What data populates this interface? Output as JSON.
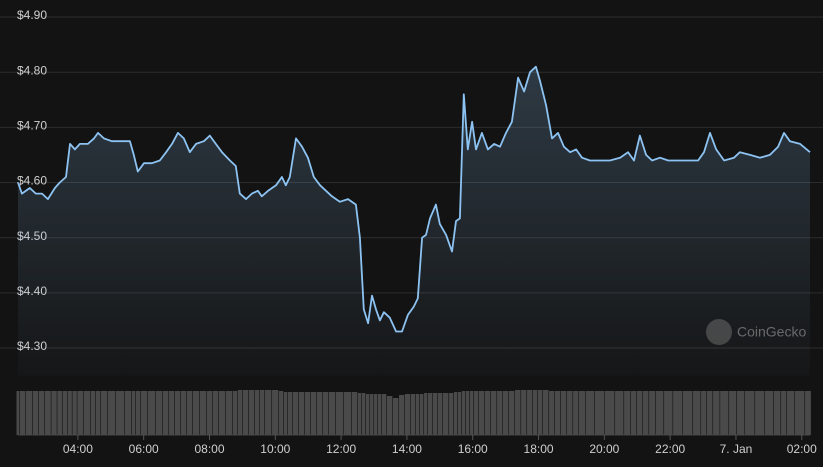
{
  "chart_data": {
    "type": "line",
    "watermark": "CoinGecko",
    "x": [
      2.18,
      2.3,
      2.54,
      2.72,
      2.91,
      3.09,
      3.3,
      3.45,
      3.64,
      3.76,
      3.91,
      4.06,
      4.3,
      4.49,
      4.61,
      4.79,
      5.03,
      5.28,
      5.58,
      5.7,
      5.82,
      6.01,
      6.25,
      6.49,
      6.68,
      6.86,
      7.04,
      7.22,
      7.4,
      7.59,
      7.83,
      8.01,
      8.19,
      8.38,
      8.62,
      8.8,
      8.92,
      9.11,
      9.29,
      9.47,
      9.59,
      9.78,
      10.02,
      10.2,
      10.32,
      10.44,
      10.63,
      10.81,
      10.99,
      11.17,
      11.36,
      11.54,
      11.72,
      11.96,
      12.21,
      12.45,
      12.57,
      12.69,
      12.82,
      12.94,
      13.06,
      13.18,
      13.3,
      13.48,
      13.67,
      13.85,
      14.03,
      14.21,
      14.33,
      14.46,
      14.58,
      14.7,
      14.88,
      15.0,
      15.19,
      15.37,
      15.49,
      15.61,
      15.73,
      15.85,
      15.98,
      16.1,
      16.28,
      16.46,
      16.65,
      16.83,
      17.01,
      17.19,
      17.38,
      17.56,
      17.74,
      17.92,
      18.04,
      18.23,
      18.41,
      18.59,
      18.77,
      18.96,
      19.14,
      19.32,
      19.56,
      19.87,
      20.17,
      20.48,
      20.72,
      20.9,
      21.08,
      21.27,
      21.45,
      21.69,
      21.94,
      22.24,
      22.54,
      22.85,
      23.03,
      23.21,
      23.4,
      23.64,
      23.94,
      24.12,
      24.43,
      24.73,
      25.03,
      25.28,
      25.46,
      25.64,
      25.95,
      26.25
    ],
    "series": [
      {
        "color": "#8dc3f2",
        "values": [
          4.6,
          4.58,
          4.59,
          4.58,
          4.58,
          4.57,
          4.59,
          4.6,
          4.61,
          4.67,
          4.66,
          4.67,
          4.67,
          4.68,
          4.69,
          4.68,
          4.675,
          4.675,
          4.675,
          4.65,
          4.62,
          4.635,
          4.635,
          4.64,
          4.655,
          4.67,
          4.69,
          4.68,
          4.655,
          4.67,
          4.675,
          4.685,
          4.67,
          4.655,
          4.64,
          4.63,
          4.58,
          4.57,
          4.58,
          4.585,
          4.575,
          4.585,
          4.595,
          4.61,
          4.595,
          4.61,
          4.68,
          4.665,
          4.645,
          4.61,
          4.595,
          4.585,
          4.575,
          4.565,
          4.57,
          4.56,
          4.5,
          4.37,
          4.345,
          4.395,
          4.37,
          4.35,
          4.365,
          4.355,
          4.33,
          4.33,
          4.36,
          4.375,
          4.39,
          4.5,
          4.505,
          4.535,
          4.56,
          4.525,
          4.505,
          4.475,
          4.53,
          4.535,
          4.76,
          4.66,
          4.71,
          4.66,
          4.69,
          4.66,
          4.67,
          4.665,
          4.69,
          4.71,
          4.79,
          4.765,
          4.8,
          4.81,
          4.785,
          4.74,
          4.68,
          4.69,
          4.665,
          4.655,
          4.66,
          4.645,
          4.64,
          4.64,
          4.64,
          4.645,
          4.655,
          4.64,
          4.685,
          4.65,
          4.64,
          4.645,
          4.64,
          4.64,
          4.64,
          4.64,
          4.655,
          4.69,
          4.66,
          4.64,
          4.645,
          4.655,
          4.65,
          4.645,
          4.65,
          4.665,
          4.69,
          4.675,
          4.67,
          4.655
        ]
      },
      {
        "color": "#4a4a4a",
        "axis": "y2",
        "type": "bar",
        "values": [
          88,
          88,
          88,
          88,
          88,
          88,
          88,
          88,
          88,
          88,
          88,
          88,
          88,
          88,
          88,
          88,
          88,
          88,
          88,
          88,
          88,
          88,
          88,
          88,
          88,
          88,
          88,
          88,
          88,
          88,
          88,
          88,
          88,
          88,
          88,
          88,
          90,
          90,
          90,
          90,
          90,
          90,
          90,
          88,
          86,
          86,
          86,
          86,
          86,
          86,
          86,
          86,
          86,
          86,
          86,
          86,
          84,
          84,
          82,
          82,
          82,
          82,
          82,
          78,
          74,
          80,
          82,
          82,
          82,
          82,
          84,
          84,
          84,
          84,
          84,
          84,
          86,
          86,
          88,
          88,
          88,
          88,
          88,
          88,
          88,
          88,
          88,
          88,
          90,
          90,
          90,
          90,
          90,
          90,
          88,
          88,
          88,
          88,
          88,
          88,
          88,
          88,
          88,
          88,
          88,
          88,
          88,
          88,
          88,
          88,
          88,
          88,
          88,
          88,
          88,
          88,
          88,
          88,
          88,
          88,
          88,
          88,
          88,
          88,
          88,
          88,
          88,
          88
        ]
      }
    ],
    "xlim": [
      2.18,
      26.25
    ],
    "xticks": [
      {
        "value": 4,
        "label": "04:00"
      },
      {
        "value": 6,
        "label": "06:00"
      },
      {
        "value": 8,
        "label": "08:00"
      },
      {
        "value": 10,
        "label": "10:00"
      },
      {
        "value": 12,
        "label": "12:00"
      },
      {
        "value": 14,
        "label": "14:00"
      },
      {
        "value": 16,
        "label": "16:00"
      },
      {
        "value": 18,
        "label": "18:00"
      },
      {
        "value": 20,
        "label": "20:00"
      },
      {
        "value": 22,
        "label": "22:00"
      },
      {
        "value": 24,
        "label": "7. Jan"
      },
      {
        "value": 26,
        "label": "02:00"
      }
    ],
    "ylim": [
      4.25,
      4.92
    ],
    "yticks": [
      {
        "value": 4.3,
        "label": "$4.30"
      },
      {
        "value": 4.4,
        "label": "$4.40"
      },
      {
        "value": 4.5,
        "label": "$4.50"
      },
      {
        "value": 4.6,
        "label": "$4.60"
      },
      {
        "value": 4.7,
        "label": "$4.70"
      },
      {
        "value": 4.8,
        "label": "$4.80"
      },
      {
        "value": 4.9,
        "label": "$4.90"
      }
    ],
    "y2lim": [
      0,
      100
    ],
    "grid": true
  }
}
